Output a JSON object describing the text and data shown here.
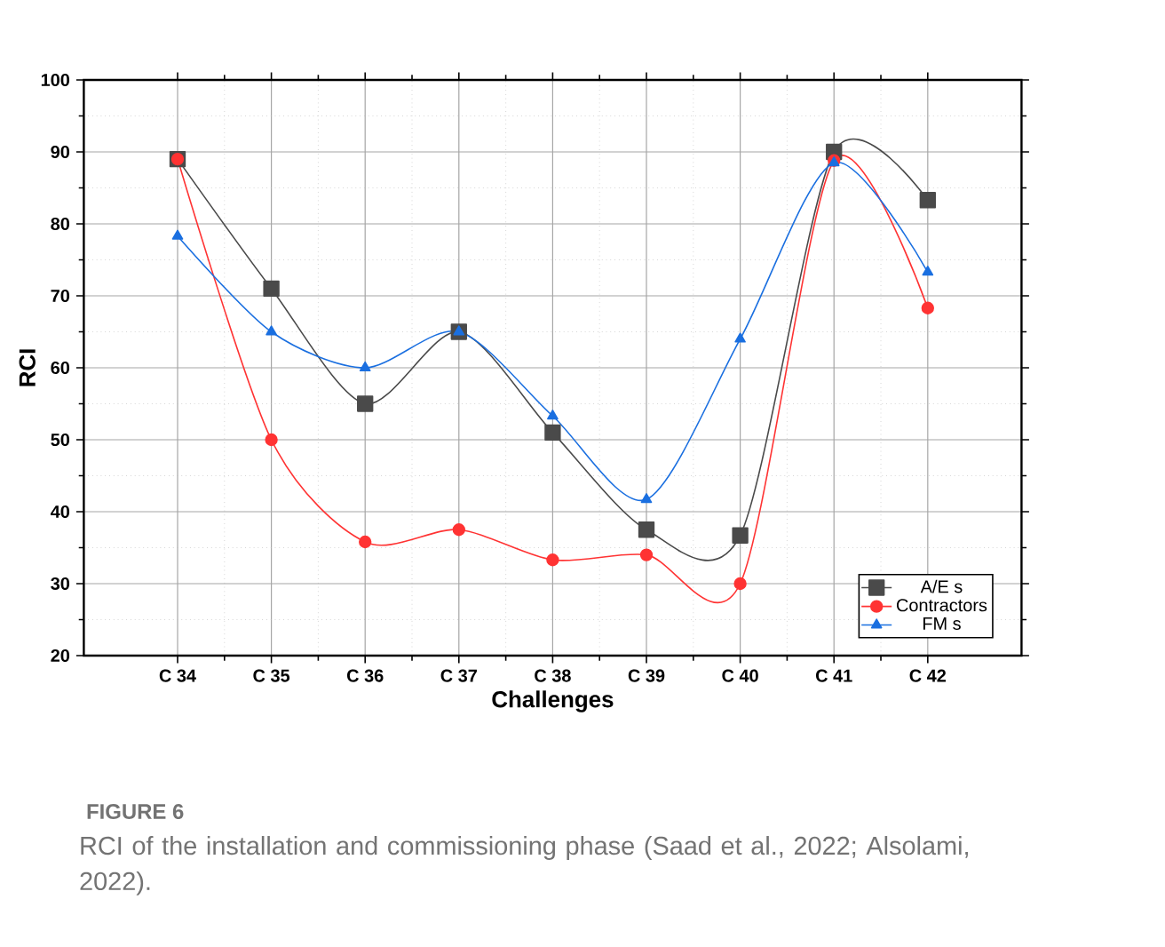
{
  "chart_data": {
    "type": "line",
    "xlabel": "Challenges",
    "ylabel": "RCI",
    "categories": [
      "C 34",
      "C 35",
      "C 36",
      "C 37",
      "C 38",
      "C 39",
      "C 40",
      "C 41",
      "C 42"
    ],
    "series": [
      {
        "name": "A/E s",
        "color": "#4a4a4a",
        "marker": "square",
        "values": [
          89,
          71,
          55,
          65,
          51,
          37.5,
          36.7,
          90,
          83.3
        ]
      },
      {
        "name": "Contractors",
        "color": "#ff3333",
        "marker": "circle",
        "values": [
          89,
          50,
          35.8,
          37.5,
          33.3,
          34,
          30,
          88.8,
          68.3
        ]
      },
      {
        "name": "FM s",
        "color": "#1a6fe0",
        "marker": "triangle",
        "values": [
          78.3,
          65,
          60,
          65,
          53.3,
          41.7,
          64,
          88.5,
          73.3
        ]
      }
    ],
    "ylim": [
      20,
      100
    ],
    "yticks": [
      20,
      30,
      40,
      50,
      60,
      70,
      80,
      90,
      100
    ],
    "grid": true,
    "legend": "bottom right",
    "line_style": "solid",
    "annotations": [
      "FIGURE 6",
      "RCI of the installation and commissioning phase (Saad et al., 2022; Alsolami, 2022)."
    ]
  }
}
